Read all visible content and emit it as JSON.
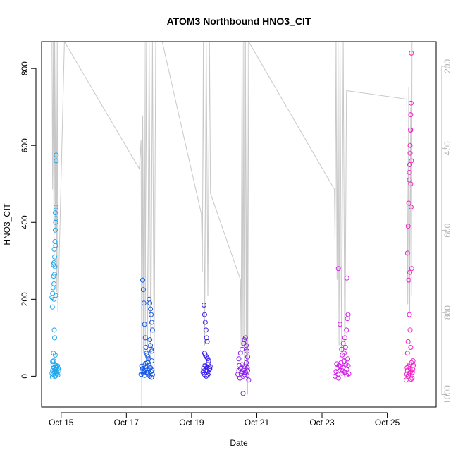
{
  "chart_data": {
    "type": "scatter",
    "title": "ATOM3 Northbound HNO3_CIT",
    "xlabel": "Date",
    "ylabel": "HNO3_CIT",
    "xlim": [
      14.4,
      26.5
    ],
    "ylim": [
      -80,
      870
    ],
    "xticks": [
      {
        "value": 15,
        "label": "Oct 15"
      },
      {
        "value": 17,
        "label": "Oct 17"
      },
      {
        "value": 19,
        "label": "Oct 19"
      },
      {
        "value": 21,
        "label": "Oct 21"
      },
      {
        "value": 23,
        "label": "Oct 23"
      },
      {
        "value": 25,
        "label": "Oct 25"
      }
    ],
    "yticks": [
      0,
      200,
      400,
      600,
      800
    ],
    "y2_axis": {
      "ylim": [
        1030,
        140
      ],
      "ticks": [
        200,
        400,
        600,
        800,
        1000
      ],
      "color": "#b3b3b3"
    },
    "grid": false,
    "legend": "none",
    "flights": [
      {
        "center": 14.8,
        "color": "#1fa6ee",
        "base": [
          [
            14.72,
            8
          ],
          [
            14.74,
            15
          ],
          [
            14.76,
            5
          ],
          [
            14.78,
            22
          ],
          [
            14.8,
            10
          ],
          [
            14.82,
            0
          ],
          [
            14.84,
            18
          ],
          [
            14.86,
            12
          ],
          [
            14.88,
            25
          ],
          [
            14.9,
            3
          ],
          [
            14.92,
            14
          ],
          [
            14.75,
            30
          ],
          [
            14.79,
            2
          ],
          [
            14.83,
            28
          ],
          [
            14.87,
            6
          ],
          [
            14.91,
            20
          ],
          [
            14.73,
            -2
          ],
          [
            14.81,
            16
          ],
          [
            14.85,
            9
          ],
          [
            14.89,
            27
          ]
        ],
        "high": [
          [
            14.72,
            205
          ],
          [
            14.73,
            180
          ],
          [
            14.74,
            215
          ],
          [
            14.75,
            230
          ],
          [
            14.76,
            290
          ],
          [
            14.77,
            260
          ],
          [
            14.78,
            295
          ],
          [
            14.78,
            240
          ],
          [
            14.79,
            330
          ],
          [
            14.8,
            310
          ],
          [
            14.8,
            265
          ],
          [
            14.81,
            350
          ],
          [
            14.81,
            285
          ],
          [
            14.82,
            425
          ],
          [
            14.82,
            380
          ],
          [
            14.83,
            400
          ],
          [
            14.83,
            340
          ],
          [
            14.84,
            440
          ],
          [
            14.84,
            410
          ],
          [
            14.85,
            575
          ],
          [
            14.85,
            560
          ],
          [
            14.79,
            120
          ],
          [
            14.8,
            100
          ],
          [
            14.76,
            60
          ],
          [
            14.77,
            40
          ],
          [
            14.82,
            55
          ],
          [
            14.74,
            38
          ],
          [
            14.86,
            22
          ],
          [
            14.78,
            200
          ],
          [
            14.83,
            210
          ]
        ]
      },
      {
        "center": 17.6,
        "color": "#1458ea",
        "base": [
          [
            17.45,
            5
          ],
          [
            17.48,
            12
          ],
          [
            17.5,
            20
          ],
          [
            17.52,
            8
          ],
          [
            17.54,
            30
          ],
          [
            17.56,
            2
          ],
          [
            17.58,
            18
          ],
          [
            17.6,
            25
          ],
          [
            17.62,
            10
          ],
          [
            17.64,
            35
          ],
          [
            17.66,
            6
          ],
          [
            17.68,
            15
          ],
          [
            17.7,
            28
          ],
          [
            17.72,
            0
          ],
          [
            17.74,
            22
          ],
          [
            17.76,
            12
          ],
          [
            17.78,
            40
          ],
          [
            17.8,
            4
          ],
          [
            17.47,
            26
          ],
          [
            17.53,
            14
          ],
          [
            17.59,
            33
          ],
          [
            17.65,
            9
          ],
          [
            17.71,
            19
          ],
          [
            17.77,
            -3
          ],
          [
            17.79,
            16
          ]
        ],
        "high": [
          [
            17.5,
            250
          ],
          [
            17.52,
            225
          ],
          [
            17.54,
            190
          ],
          [
            17.56,
            135
          ],
          [
            17.58,
            100
          ],
          [
            17.6,
            75
          ],
          [
            17.62,
            60
          ],
          [
            17.64,
            55
          ],
          [
            17.7,
            200
          ],
          [
            17.72,
            190
          ],
          [
            17.74,
            175
          ],
          [
            17.76,
            160
          ],
          [
            17.78,
            140
          ],
          [
            17.8,
            120
          ],
          [
            17.72,
            95
          ],
          [
            17.74,
            80
          ],
          [
            17.76,
            70
          ],
          [
            17.78,
            65
          ],
          [
            17.66,
            50
          ],
          [
            17.68,
            45
          ]
        ]
      },
      {
        "center": 19.5,
        "color": "#3a1ef0",
        "base": [
          [
            19.35,
            10
          ],
          [
            19.37,
            20
          ],
          [
            19.39,
            5
          ],
          [
            19.41,
            28
          ],
          [
            19.43,
            15
          ],
          [
            19.45,
            0
          ],
          [
            19.47,
            22
          ],
          [
            19.49,
            12
          ],
          [
            19.51,
            30
          ],
          [
            19.53,
            8
          ],
          [
            19.55,
            18
          ],
          [
            19.57,
            25
          ],
          [
            19.38,
            14
          ],
          [
            19.44,
            26
          ],
          [
            19.5,
            4
          ],
          [
            19.56,
            19
          ]
        ],
        "high": [
          [
            19.38,
            185
          ],
          [
            19.4,
            160
          ],
          [
            19.42,
            140
          ],
          [
            19.44,
            120
          ],
          [
            19.46,
            100
          ],
          [
            19.48,
            90
          ],
          [
            19.4,
            60
          ],
          [
            19.42,
            55
          ],
          [
            19.46,
            50
          ],
          [
            19.5,
            45
          ],
          [
            19.52,
            40
          ]
        ]
      },
      {
        "center": 20.6,
        "color": "#8b1cf0",
        "base": [
          [
            20.42,
            5
          ],
          [
            20.45,
            15
          ],
          [
            20.48,
            -5
          ],
          [
            20.5,
            20
          ],
          [
            20.52,
            8
          ],
          [
            20.55,
            30
          ],
          [
            20.58,
            0
          ],
          [
            20.6,
            18
          ],
          [
            20.62,
            25
          ],
          [
            20.65,
            10
          ],
          [
            20.68,
            35
          ],
          [
            20.7,
            2
          ],
          [
            20.72,
            15
          ],
          [
            20.75,
            -10
          ],
          [
            20.46,
            28
          ],
          [
            20.54,
            12
          ],
          [
            20.63,
            4
          ],
          [
            20.71,
            22
          ]
        ],
        "high": [
          [
            20.45,
            45
          ],
          [
            20.5,
            60
          ],
          [
            20.55,
            70
          ],
          [
            20.6,
            85
          ],
          [
            20.62,
            95
          ],
          [
            20.65,
            100
          ],
          [
            20.68,
            80
          ],
          [
            20.7,
            65
          ],
          [
            20.72,
            50
          ],
          [
            20.58,
            -45
          ]
        ]
      },
      {
        "center": 23.6,
        "color": "#d21ee8",
        "base": [
          [
            23.4,
            0
          ],
          [
            23.43,
            12
          ],
          [
            23.46,
            20
          ],
          [
            23.49,
            5
          ],
          [
            23.52,
            28
          ],
          [
            23.55,
            15
          ],
          [
            23.58,
            35
          ],
          [
            23.61,
            8
          ],
          [
            23.64,
            22
          ],
          [
            23.67,
            40
          ],
          [
            23.7,
            10
          ],
          [
            23.73,
            30
          ],
          [
            23.76,
            18
          ],
          [
            23.79,
            45
          ],
          [
            23.82,
            6
          ],
          [
            23.45,
            32
          ],
          [
            23.5,
            -5
          ],
          [
            23.57,
            25
          ],
          [
            23.63,
            14
          ],
          [
            23.69,
            38
          ],
          [
            23.75,
            3
          ],
          [
            23.8,
            27
          ]
        ],
        "high": [
          [
            23.5,
            280
          ],
          [
            23.55,
            135
          ],
          [
            23.6,
            70
          ],
          [
            23.65,
            85
          ],
          [
            23.7,
            100
          ],
          [
            23.75,
            120
          ],
          [
            23.78,
            150
          ],
          [
            23.8,
            160
          ],
          [
            23.76,
            255
          ],
          [
            23.72,
            75
          ],
          [
            23.68,
            60
          ],
          [
            23.62,
            55
          ]
        ]
      },
      {
        "center": 25.7,
        "color": "#f21ec8",
        "base": [
          [
            25.58,
            -10
          ],
          [
            25.6,
            5
          ],
          [
            25.62,
            15
          ],
          [
            25.64,
            0
          ],
          [
            25.66,
            25
          ],
          [
            25.68,
            8
          ],
          [
            25.7,
            20
          ],
          [
            25.72,
            12
          ],
          [
            25.74,
            35
          ],
          [
            25.76,
            -5
          ],
          [
            25.78,
            18
          ],
          [
            25.8,
            28
          ],
          [
            25.61,
            22
          ],
          [
            25.65,
            3
          ],
          [
            25.69,
            30
          ],
          [
            25.73,
            -8
          ],
          [
            25.77,
            10
          ],
          [
            25.79,
            40
          ]
        ],
        "high": [
          [
            25.62,
            320
          ],
          [
            25.64,
            390
          ],
          [
            25.66,
            450
          ],
          [
            25.68,
            510
          ],
          [
            25.69,
            550
          ],
          [
            25.7,
            600
          ],
          [
            25.71,
            640
          ],
          [
            25.72,
            680
          ],
          [
            25.73,
            710
          ],
          [
            25.74,
            840
          ],
          [
            25.72,
            640
          ],
          [
            25.7,
            580
          ],
          [
            25.68,
            530
          ],
          [
            25.74,
            560
          ],
          [
            25.72,
            500
          ],
          [
            25.66,
            250
          ],
          [
            25.68,
            160
          ],
          [
            25.7,
            120
          ],
          [
            25.64,
            90
          ],
          [
            25.72,
            75
          ],
          [
            25.62,
            60
          ],
          [
            25.75,
            280
          ],
          [
            25.73,
            440
          ],
          [
            25.69,
            270
          ]
        ]
      }
    ],
    "secondary_series": {
      "color": "#c8c8c8",
      "points": [
        [
          14.72,
          140
        ],
        [
          14.74,
          500
        ],
        [
          14.76,
          140
        ],
        [
          14.78,
          680
        ],
        [
          14.8,
          140
        ],
        [
          14.82,
          600
        ],
        [
          14.84,
          140
        ],
        [
          14.86,
          750
        ],
        [
          14.88,
          140
        ],
        [
          14.9,
          800
        ],
        [
          15.1,
          140
        ],
        [
          17.4,
          450
        ],
        [
          17.45,
          380
        ],
        [
          17.47,
          1030
        ],
        [
          17.5,
          320
        ],
        [
          17.52,
          900
        ],
        [
          17.55,
          140
        ],
        [
          17.58,
          880
        ],
        [
          17.6,
          140
        ],
        [
          17.65,
          900
        ],
        [
          17.7,
          140
        ],
        [
          17.75,
          950
        ],
        [
          17.8,
          140
        ],
        [
          17.85,
          960
        ],
        [
          17.9,
          140
        ],
        [
          18.1,
          140
        ],
        [
          19.3,
          560
        ],
        [
          19.33,
          700
        ],
        [
          19.36,
          140
        ],
        [
          19.4,
          880
        ],
        [
          19.45,
          140
        ],
        [
          19.5,
          760
        ],
        [
          19.55,
          140
        ],
        [
          19.58,
          510
        ],
        [
          20.5,
          720
        ],
        [
          20.52,
          880
        ],
        [
          20.55,
          140
        ],
        [
          20.58,
          880
        ],
        [
          20.6,
          140
        ],
        [
          20.62,
          950
        ],
        [
          20.65,
          140
        ],
        [
          20.68,
          960
        ],
        [
          20.7,
          140
        ],
        [
          20.72,
          1000
        ],
        [
          20.75,
          140
        ],
        [
          23.38,
          500
        ],
        [
          23.4,
          630
        ],
        [
          23.43,
          140
        ],
        [
          23.46,
          720
        ],
        [
          23.49,
          140
        ],
        [
          23.52,
          880
        ],
        [
          23.55,
          140
        ],
        [
          23.6,
          900
        ],
        [
          23.65,
          140
        ],
        [
          23.7,
          960
        ],
        [
          23.75,
          260
        ],
        [
          23.8,
          260
        ],
        [
          25.6,
          280
        ],
        [
          25.63,
          780
        ],
        [
          25.66,
          250
        ],
        [
          25.69,
          800
        ],
        [
          25.72,
          300
        ],
        [
          25.74,
          760
        ],
        [
          25.76,
          140
        ]
      ]
    }
  }
}
